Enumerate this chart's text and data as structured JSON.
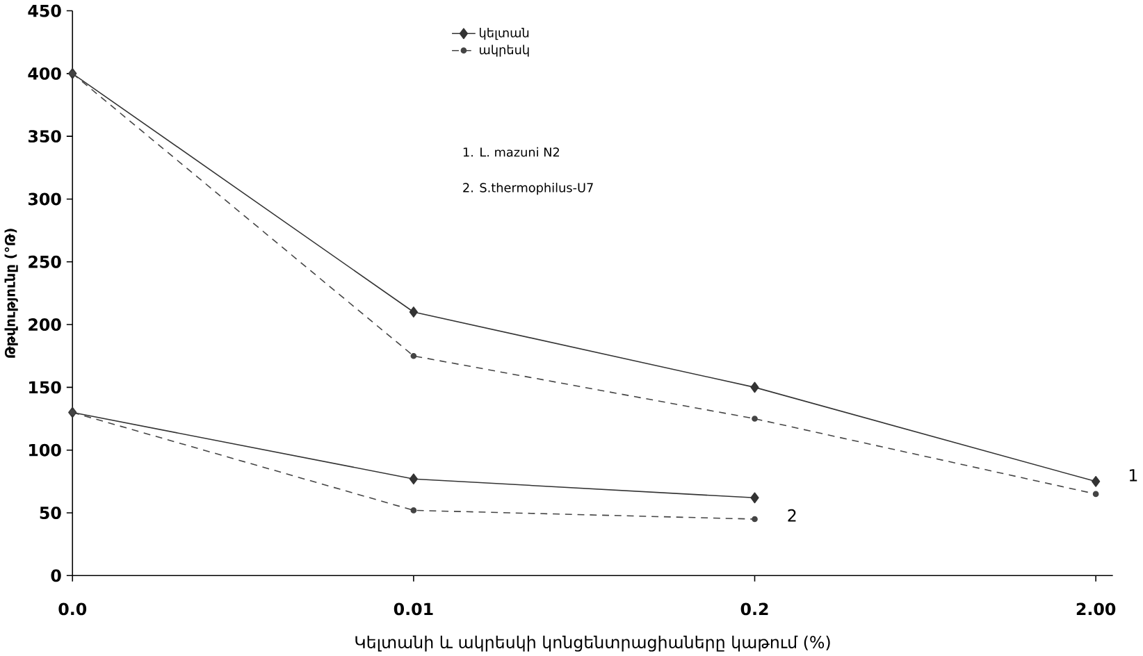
{
  "chart_data": {
    "type": "line",
    "xlabel": "Կելտանի և ակրեսկի կոնցենտրացիաները կաթում (%)",
    "ylabel": "Թթվությունը (°Թ)",
    "categories": [
      "0.0",
      "0.01",
      "0.2",
      "2.00"
    ],
    "series": [
      {
        "name": "կելտան",
        "color": "#333333",
        "line_style": "solid",
        "marker": "diamond",
        "values": [
          400,
          210,
          150,
          75
        ]
      },
      {
        "name": "ակրեսկ",
        "color": "#444444",
        "line_style": "dashed",
        "marker": "circle",
        "values": [
          400,
          175,
          125,
          65
        ]
      },
      {
        "color": "#333333",
        "line_style": "solid",
        "marker": "diamond",
        "values": [
          130,
          77,
          62,
          null
        ]
      },
      {
        "color": "#444444",
        "line_style": "dashed",
        "marker": "circle",
        "values": [
          130,
          52,
          45,
          null
        ]
      }
    ],
    "ylim": [
      0,
      450
    ],
    "yticks": [
      0,
      50,
      100,
      150,
      200,
      250,
      300,
      350,
      400,
      450
    ],
    "grid": false,
    "legend": "top",
    "annotations": [
      "1. L. mazuni N2",
      "2. S.thermophilus-U7",
      {
        "text": "1",
        "x": "2.00",
        "y": 80
      },
      {
        "text": "2",
        "x": "0.2",
        "y": 48
      }
    ]
  }
}
